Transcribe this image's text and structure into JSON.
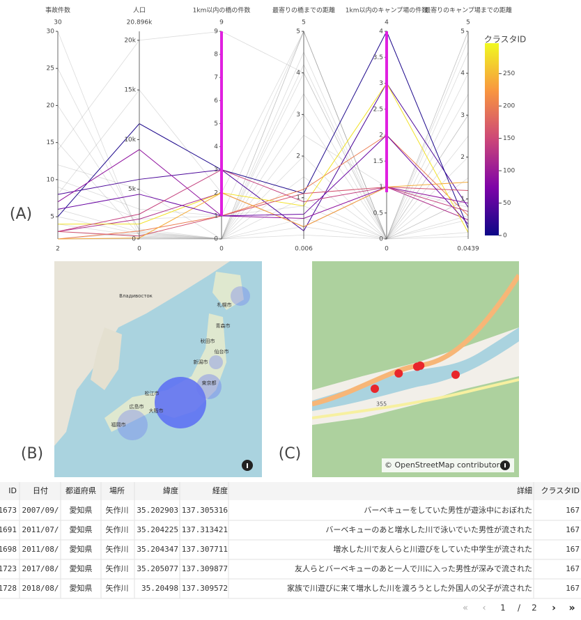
{
  "chart_data": {
    "type": "parcoords",
    "dimensions": [
      {
        "label": "事故件数",
        "range": [
          2,
          30
        ],
        "ticks": [
          5,
          10,
          15,
          20,
          25,
          30
        ]
      },
      {
        "label": "人口",
        "range": [
          0,
          {
            "value": 20896,
            "label": "20.896k"
          }
        ],
        "ticks": [
          0,
          {
            "value": 5000,
            "label": "5k"
          },
          {
            "value": 10000,
            "label": "10k"
          },
          {
            "value": 15000,
            "label": "15k"
          },
          {
            "value": 20000,
            "label": "20k"
          }
        ]
      },
      {
        "label": "1km以内の橋の件数",
        "range": [
          0,
          9
        ],
        "ticks": [
          0,
          1,
          2,
          3,
          4,
          5,
          6,
          7,
          8,
          9
        ],
        "constraintrange": [
          1,
          9
        ]
      },
      {
        "label": "最寄りの橋までの距離",
        "range": [
          0.006,
          5
        ],
        "ticks": [
          1,
          2,
          3,
          4,
          5
        ]
      },
      {
        "label": "1km以内のキャンプ場の件数",
        "range": [
          0,
          4
        ],
        "ticks": [
          0,
          0.5,
          1,
          1.5,
          2,
          2.5,
          3,
          3.5,
          4
        ],
        "constraintrange": [
          0.9,
          4
        ]
      },
      {
        "label": "最寄りのキャンプ場までの距離",
        "range": [
          0.0439,
          5
        ],
        "ticks": [
          1,
          2,
          3,
          4,
          5
        ]
      }
    ],
    "colorbar": {
      "title": "クラスタID",
      "range": [
        0,
        297
      ],
      "ticks": [
        0,
        50,
        100,
        150,
        200,
        250
      ]
    },
    "colorscale": [
      "#0d0887",
      "#7e03a8",
      "#cc4778",
      "#f89540",
      "#f0f921"
    ],
    "lines": [
      {
        "values": [
          3,
          2000,
          2,
          0.3,
          1,
          0.5
        ],
        "color_value": 120
      },
      {
        "values": [
          8,
          6000,
          3,
          0.2,
          3,
          0.8
        ],
        "color_value": 40
      },
      {
        "values": [
          5,
          11600,
          3,
          1.1,
          4,
          0.3
        ],
        "color_value": 10
      },
      {
        "values": [
          2,
          800,
          1,
          1.2,
          2,
          0.6
        ],
        "color_value": 200
      },
      {
        "values": [
          4,
          1500,
          2,
          0.8,
          3,
          0.2
        ],
        "color_value": 280
      },
      {
        "values": [
          7,
          9000,
          1,
          0.5,
          1,
          0.9
        ],
        "color_value": 90
      },
      {
        "values": [
          3,
          300,
          1,
          1.1,
          1,
          1.2
        ],
        "color_value": 160
      },
      {
        "values": [
          2,
          100,
          2,
          0.3,
          1,
          1.4
        ],
        "color_value": 240
      },
      {
        "values": [
          6,
          4500,
          1,
          0.6,
          2,
          0.4
        ],
        "color_value": 60
      },
      {
        "values": [
          3,
          2500,
          3,
          0.9,
          1,
          0.7
        ],
        "color_value": 140
      }
    ],
    "background_lines": [
      [
        30,
        200,
        0,
        5,
        0,
        5
      ],
      [
        14,
        20000,
        9,
        4,
        0,
        3
      ],
      [
        25,
        800,
        0,
        1,
        0,
        2
      ],
      [
        2,
        0,
        0,
        4.5,
        0,
        4
      ],
      [
        10,
        3000,
        1,
        5,
        0,
        1
      ],
      [
        5,
        500,
        0,
        3,
        0,
        0.5
      ],
      [
        20,
        1000,
        0,
        2,
        0,
        5
      ],
      [
        2,
        100,
        0,
        0.5,
        0,
        3.5
      ],
      [
        8,
        15000,
        2,
        5,
        0,
        0.2
      ],
      [
        3,
        200,
        0,
        1.5,
        0,
        2.5
      ],
      [
        12,
        5000,
        0,
        4,
        0,
        1
      ],
      [
        2,
        50,
        0,
        0.3,
        0,
        4.5
      ],
      [
        4,
        300,
        0,
        2.5,
        1,
        0.8
      ],
      [
        6,
        700,
        0,
        5,
        0,
        0.1
      ],
      [
        2,
        0,
        0,
        3.5,
        0,
        1.5
      ],
      [
        9,
        2000,
        1,
        0.8,
        0,
        3
      ],
      [
        15,
        400,
        0,
        4.2,
        0,
        4.8
      ],
      [
        2,
        600,
        0,
        0.1,
        0,
        0.6
      ]
    ]
  },
  "panel_labels": [
    "(A)",
    "(B)",
    "(C)"
  ],
  "map_b": {
    "labels": [
      "Владивосток",
      "札幌市",
      "青森市",
      "秋田市",
      "仙台市",
      "新潟市",
      "東京都",
      "松江市",
      "広島市",
      "大阪市",
      "福岡市"
    ]
  },
  "map_c": {
    "road_label": "355",
    "attribution": "© OpenStreetMap contributors"
  },
  "table": {
    "columns": [
      "ID",
      "日付",
      "都道府県",
      "場所",
      "緯度",
      "経度",
      "詳細",
      "クラスタID"
    ],
    "rows": [
      [
        1673,
        "2007/09/",
        "愛知県",
        "矢作川",
        35.202903,
        137.305316,
        "バーベキューをしていた男性が遊泳中におぼれた",
        167
      ],
      [
        1691,
        "2011/07/",
        "愛知県",
        "矢作川",
        35.204225,
        137.313421,
        "バーベキューのあと増水した川で泳いでいた男性が流された",
        167
      ],
      [
        1698,
        "2011/08/",
        "愛知県",
        "矢作川",
        35.204347,
        137.307711,
        "増水した川で友人らと川遊びをしていた中学生が流された",
        167
      ],
      [
        1723,
        "2017/08/",
        "愛知県",
        "矢作川",
        35.205077,
        137.309877,
        "友人らとバーベキューのあと一人で川に入った男性が深みで流された",
        167
      ],
      [
        1728,
        "2018/08/",
        "愛知県",
        "矢作川",
        35.20498,
        137.309572,
        "家族で川遊びに来て増水した川を渡ろうとした外国人の父子が流された",
        167
      ]
    ]
  },
  "pagination": {
    "current": "1",
    "separator": "/",
    "total": "2"
  }
}
